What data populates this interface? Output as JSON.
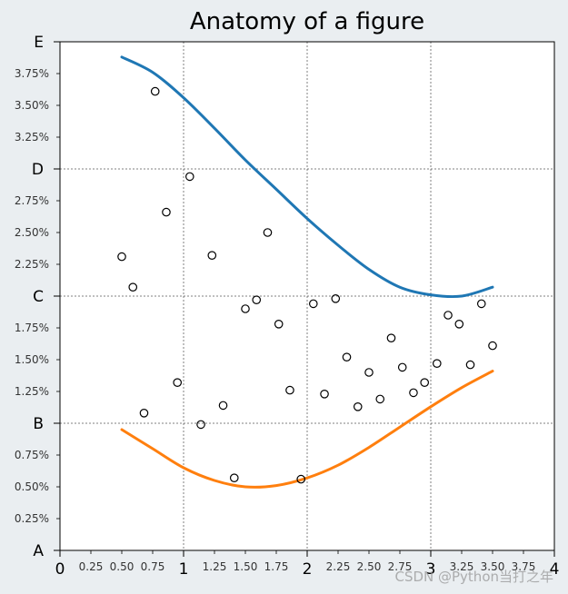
{
  "chart_data": {
    "type": "line",
    "title": "Anatomy of a figure",
    "xlim": [
      0,
      4
    ],
    "ylim": [
      0,
      4
    ],
    "x_major_ticks": [
      0,
      1,
      2,
      3,
      4
    ],
    "x_major_labels": [
      "0",
      "1",
      "2",
      "3",
      "4"
    ],
    "x_minor_ticks": [
      0.25,
      0.5,
      0.75,
      1.25,
      1.5,
      1.75,
      2.25,
      2.5,
      2.75,
      3.25,
      3.5,
      3.75
    ],
    "x_minor_labels": [
      "0.25",
      "0.50",
      "0.75",
      "1.25",
      "1.50",
      "1.75",
      "2.25",
      "2.50",
      "2.75",
      "3.25",
      "3.50",
      "3.75"
    ],
    "y_major_ticks": [
      0,
      1,
      2,
      3,
      4
    ],
    "y_major_labels": [
      "A",
      "B",
      "C",
      "D",
      "E"
    ],
    "y_minor_ticks": [
      0.25,
      0.5,
      0.75,
      1.25,
      1.5,
      1.75,
      2.25,
      2.5,
      2.75,
      3.25,
      3.5,
      3.75
    ],
    "y_minor_labels": [
      "0.25%",
      "0.50%",
      "0.75%",
      "1.25%",
      "1.50%",
      "1.75%",
      "2.25%",
      "2.50%",
      "2.75%",
      "3.25%",
      "3.50%",
      "3.75%"
    ],
    "grid": true,
    "series": [
      {
        "style": "line",
        "color": "#1f77b4",
        "x": [
          0.5,
          0.75,
          1.0,
          1.25,
          1.5,
          1.75,
          2.0,
          2.25,
          2.5,
          2.75,
          3.0,
          3.25,
          3.5
        ],
        "y": [
          3.88,
          3.76,
          3.56,
          3.32,
          3.07,
          2.84,
          2.61,
          2.4,
          2.21,
          2.07,
          2.01,
          2.0,
          2.07
        ]
      },
      {
        "style": "line",
        "color": "#ff7f0e",
        "x": [
          0.5,
          0.75,
          1.0,
          1.25,
          1.5,
          1.75,
          2.0,
          2.25,
          2.5,
          2.75,
          3.0,
          3.25,
          3.5
        ],
        "y": [
          0.95,
          0.8,
          0.65,
          0.55,
          0.5,
          0.51,
          0.57,
          0.67,
          0.81,
          0.97,
          1.13,
          1.28,
          1.41
        ]
      },
      {
        "style": "scatter",
        "marker": "open-circle",
        "color": "#000000",
        "x": [
          0.5,
          0.59,
          0.68,
          0.77,
          0.86,
          0.95,
          1.05,
          1.14,
          1.23,
          1.32,
          1.41,
          1.5,
          1.59,
          1.68,
          1.77,
          1.86,
          1.95,
          2.05,
          2.14,
          2.23,
          2.32,
          2.41,
          2.5,
          2.59,
          2.68,
          2.77,
          2.86,
          2.95,
          3.05,
          3.14,
          3.23,
          3.32,
          3.41,
          3.5
        ],
        "y": [
          2.31,
          2.07,
          1.08,
          3.61,
          2.66,
          1.32,
          2.94,
          0.99,
          2.32,
          1.14,
          0.57,
          1.9,
          1.97,
          2.5,
          1.78,
          1.26,
          0.56,
          1.94,
          1.23,
          1.98,
          1.52,
          1.13,
          1.4,
          1.19,
          1.67,
          1.44,
          1.24,
          1.32,
          1.47,
          1.85,
          1.78,
          1.46,
          1.94,
          1.61
        ]
      }
    ]
  },
  "watermark": "CSDN @Python当打之年"
}
